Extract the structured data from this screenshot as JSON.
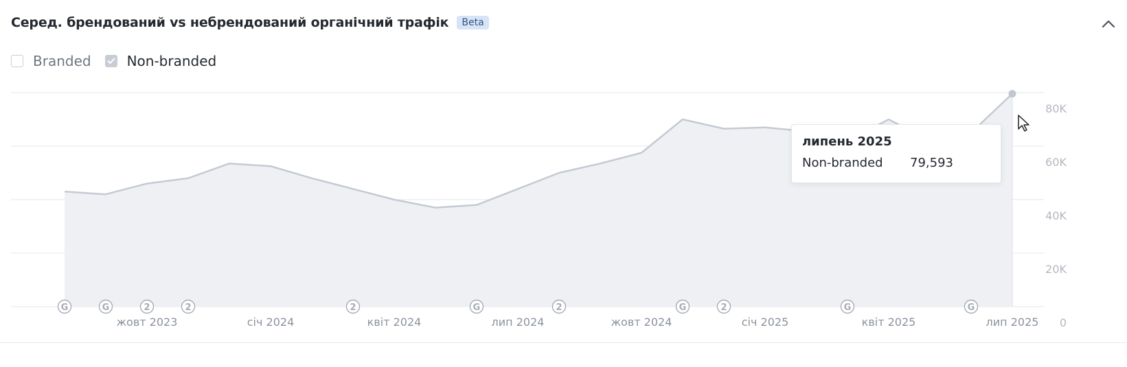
{
  "header": {
    "title": "Серед. брендований vs небрендований органічний трафік",
    "badge": "Beta"
  },
  "legend": {
    "items": [
      {
        "label": "Branded",
        "checked": false
      },
      {
        "label": "Non-branded",
        "checked": true
      }
    ]
  },
  "tooltip": {
    "title": "липень 2025",
    "series": "Non-branded",
    "value": "79,593"
  },
  "colors": {
    "line": "#c4cad3",
    "area": "#eff0f3",
    "grid": "#e4e6e9",
    "axis_text": "#b2b8bf",
    "x_text": "#8b929b",
    "marker": "#a7acb4"
  },
  "chart_data": {
    "type": "area",
    "series": [
      {
        "name": "Non-branded",
        "x": [
          "2023-08",
          "2023-09",
          "2023-10",
          "2023-11",
          "2023-12",
          "2024-01",
          "2024-02",
          "2024-03",
          "2024-04",
          "2024-05",
          "2024-06",
          "2024-07",
          "2024-08",
          "2024-09",
          "2024-10",
          "2024-11",
          "2024-12",
          "2025-01",
          "2025-02",
          "2025-03",
          "2025-04",
          "2025-05",
          "2025-06",
          "2025-07"
        ],
        "y": [
          43000,
          42000,
          46000,
          48000,
          53500,
          52500,
          48000,
          44000,
          40000,
          37000,
          38000,
          44000,
          50000,
          53500,
          57500,
          70000,
          66500,
          67000,
          65500,
          62000,
          70000,
          62000,
          65000,
          79593
        ]
      }
    ],
    "x_ticks": [
      {
        "x": "2023-10",
        "label": "жовт 2023"
      },
      {
        "x": "2024-01",
        "label": "січ 2024"
      },
      {
        "x": "2024-04",
        "label": "квіт 2024"
      },
      {
        "x": "2024-07",
        "label": "лип 2024"
      },
      {
        "x": "2024-10",
        "label": "жовт 2024"
      },
      {
        "x": "2025-01",
        "label": "січ 2025"
      },
      {
        "x": "2025-04",
        "label": "квіт 2025"
      },
      {
        "x": "2025-07",
        "label": "лип 2025"
      }
    ],
    "y_ticks": [
      {
        "value": 0,
        "label": "0"
      },
      {
        "value": 20000,
        "label": "20K"
      },
      {
        "value": 40000,
        "label": "40K"
      },
      {
        "value": 60000,
        "label": "60K"
      },
      {
        "value": 80000,
        "label": "80K"
      }
    ],
    "ylim": [
      0,
      80000
    ],
    "grid": true,
    "markers": [
      {
        "x": "2023-08",
        "label": "G"
      },
      {
        "x": "2023-09",
        "label": "G"
      },
      {
        "x": "2023-10",
        "label": "2"
      },
      {
        "x": "2023-11",
        "label": "2"
      },
      {
        "x": "2024-03",
        "label": "2"
      },
      {
        "x": "2024-06",
        "label": "G"
      },
      {
        "x": "2024-08",
        "label": "2"
      },
      {
        "x": "2024-11",
        "label": "G"
      },
      {
        "x": "2024-12",
        "label": "2"
      },
      {
        "x": "2025-03",
        "label": "G"
      },
      {
        "x": "2025-06",
        "label": "G"
      }
    ],
    "highlight": {
      "x": "2025-07",
      "y": 79593
    }
  }
}
